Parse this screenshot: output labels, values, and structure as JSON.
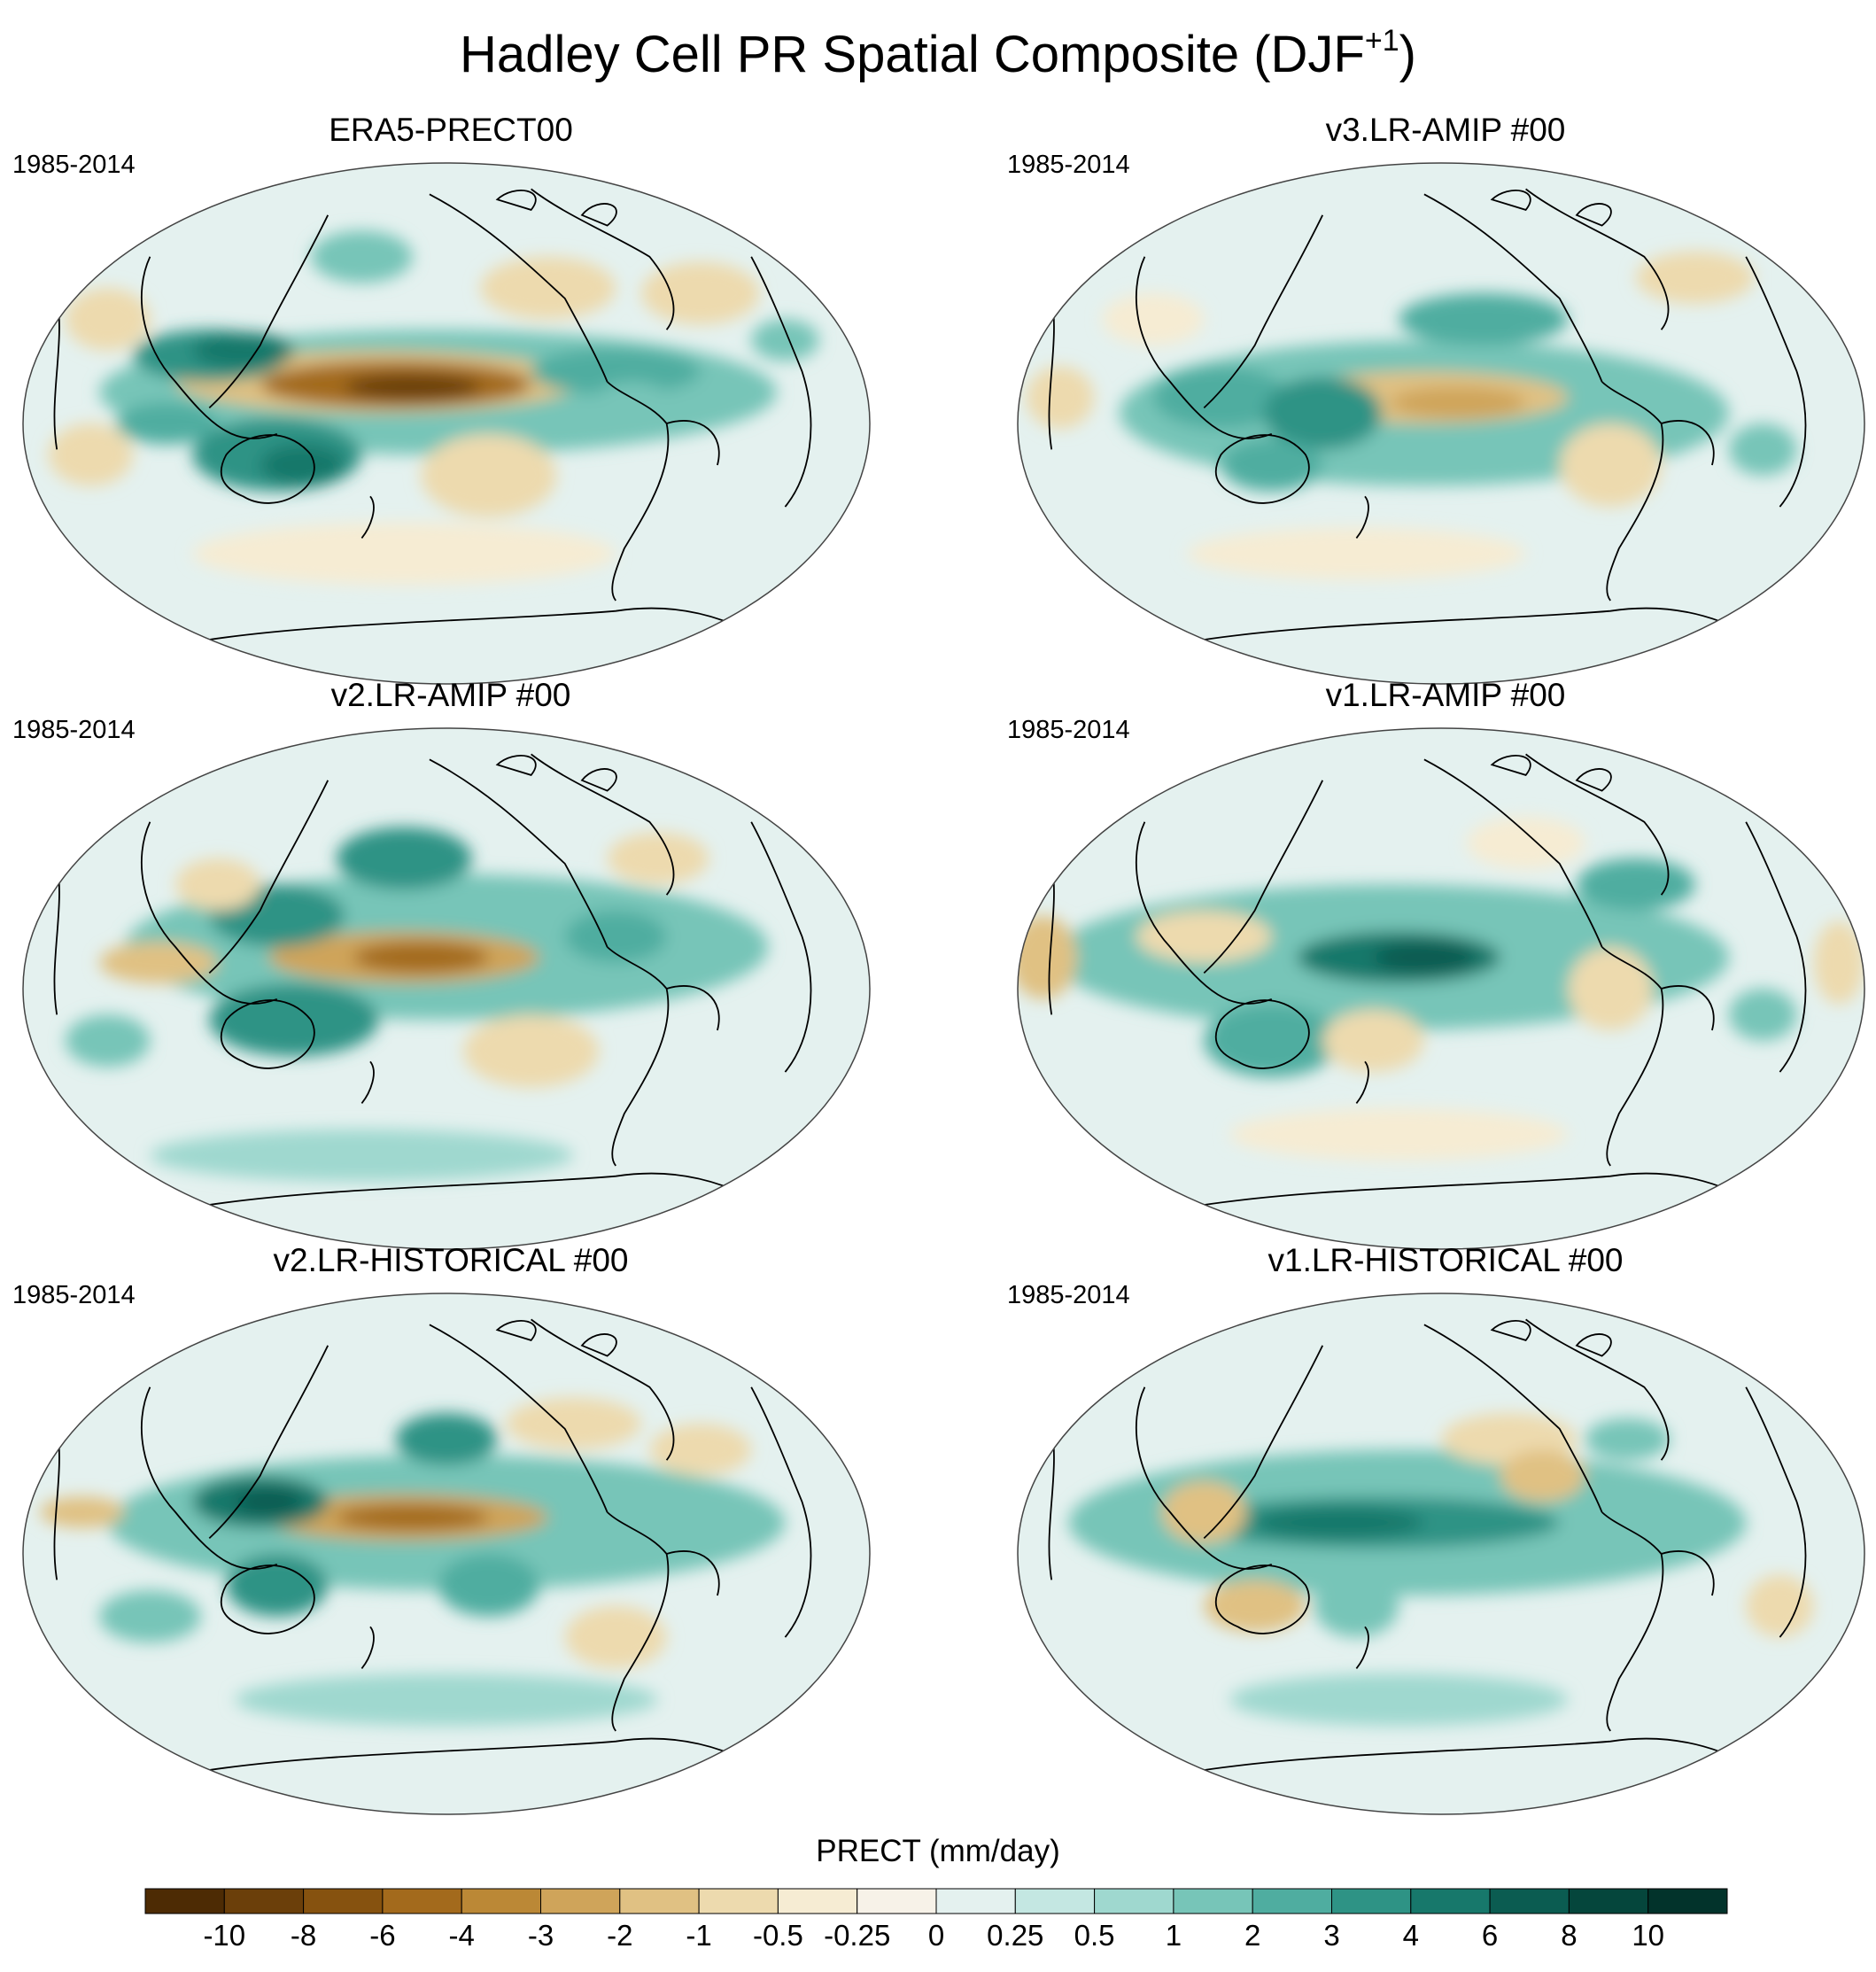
{
  "title": {
    "text": "Hadley Cell PR Spatial Composite (DJF",
    "superscript": "+1",
    "close": ")"
  },
  "panels": [
    {
      "title": "ERA5-PRECT00",
      "years": "1985-2014",
      "pattern": "era5"
    },
    {
      "title": "v3.LR-AMIP  #00",
      "years": "1985-2014",
      "pattern": "v3amip"
    },
    {
      "title": "v2.LR-AMIP  #00",
      "years": "1985-2014",
      "pattern": "v2amip"
    },
    {
      "title": "v1.LR-AMIP  #00",
      "years": "1985-2014",
      "pattern": "v1amip"
    },
    {
      "title": "v2.LR-HISTORICAL  #00",
      "years": "1985-2014",
      "pattern": "v2hist"
    },
    {
      "title": "v1.LR-HISTORICAL  #00",
      "years": "1985-2014",
      "pattern": "v1hist"
    }
  ],
  "colorbar": {
    "title": "PRECT (mm/day)",
    "tick_labels": [
      "-10",
      "-8",
      "-6",
      "-4",
      "-3",
      "-2",
      "-1",
      "-0.5",
      "-0.25",
      "0",
      "0.25",
      "0.5",
      "1",
      "2",
      "3",
      "4",
      "6",
      "8",
      "10"
    ],
    "colors": [
      "#4d2b04",
      "#6b3f0a",
      "#86520f",
      "#a36a1c",
      "#bb8836",
      "#cfa45a",
      "#e0c183",
      "#eddaae",
      "#f6ecd3",
      "#f7f2e8",
      "#e4f1ef",
      "#c4e7e2",
      "#9fd8cf",
      "#77c5b8",
      "#4fada0",
      "#2e9385",
      "#17786b",
      "#0b5c51",
      "#05463c",
      "#02332b"
    ]
  },
  "colors": {
    "coast": "#000000",
    "outline": "#444444"
  }
}
